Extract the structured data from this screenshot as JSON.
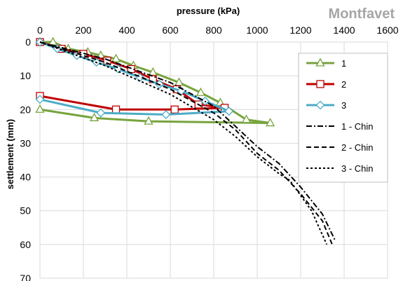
{
  "chart_data": {
    "type": "line",
    "title": "Montfavet",
    "xlabel": "pressure (kPa)",
    "ylabel": "settlement (mm)",
    "xlim": [
      0,
      1600
    ],
    "ylim": [
      0,
      70
    ],
    "y_reversed": true,
    "x_axis_position": "top",
    "x_ticks": [
      "0",
      "200",
      "400",
      "600",
      "800",
      "1000",
      "1200",
      "1400",
      "1600"
    ],
    "y_ticks": [
      "0",
      "10",
      "20",
      "30",
      "40",
      "50",
      "60",
      "70"
    ],
    "grid": true,
    "legend_position": "right",
    "series": [
      {
        "name": "1",
        "color": "#77a33d",
        "marker": "triangle",
        "dash": "solid",
        "points": [
          [
            0,
            0
          ],
          [
            60,
            0
          ],
          [
            130,
            2
          ],
          [
            220,
            3
          ],
          [
            280,
            4
          ],
          [
            350,
            5
          ],
          [
            430,
            7
          ],
          [
            520,
            9
          ],
          [
            640,
            12
          ],
          [
            740,
            15
          ],
          [
            830,
            18
          ],
          [
            950,
            23
          ],
          [
            1060,
            24
          ],
          [
            500,
            23.5
          ],
          [
            250,
            22.5
          ],
          [
            0,
            20
          ]
        ]
      },
      {
        "name": "2",
        "color": "#c00000",
        "marker": "square",
        "dash": "solid",
        "points": [
          [
            0,
            0
          ],
          [
            100,
            2
          ],
          [
            200,
            3.5
          ],
          [
            310,
            5.5
          ],
          [
            420,
            8
          ],
          [
            520,
            11
          ],
          [
            630,
            14
          ],
          [
            730,
            18.5
          ],
          [
            850,
            19.5
          ],
          [
            620,
            20
          ],
          [
            350,
            20
          ],
          [
            0,
            16
          ]
        ]
      },
      {
        "name": "3",
        "color": "#4bacc6",
        "marker": "diamond",
        "dash": "solid",
        "points": [
          [
            0,
            0
          ],
          [
            80,
            2
          ],
          [
            170,
            4
          ],
          [
            260,
            6
          ],
          [
            360,
            8
          ],
          [
            460,
            10.5
          ],
          [
            550,
            12.5
          ],
          [
            650,
            14.5
          ],
          [
            760,
            17.5
          ],
          [
            870,
            20.5
          ],
          [
            580,
            21.5
          ],
          [
            280,
            21
          ],
          [
            0,
            17
          ]
        ]
      },
      {
        "name": "1 - Chin",
        "color": "#000000",
        "marker": "none",
        "dash": "dashdot",
        "points": [
          [
            0,
            0
          ],
          [
            300,
            5
          ],
          [
            600,
            12
          ],
          [
            800,
            19
          ],
          [
            900,
            25
          ],
          [
            1000,
            31
          ],
          [
            1100,
            36
          ],
          [
            1200,
            43
          ],
          [
            1300,
            51
          ],
          [
            1360,
            59
          ]
        ]
      },
      {
        "name": "2 - Chin",
        "color": "#000000",
        "marker": "none",
        "dash": "dash",
        "points": [
          [
            0,
            0
          ],
          [
            300,
            6
          ],
          [
            600,
            14
          ],
          [
            800,
            21
          ],
          [
            900,
            26
          ],
          [
            1000,
            33
          ],
          [
            1100,
            38
          ],
          [
            1200,
            45
          ],
          [
            1300,
            53
          ],
          [
            1345,
            60
          ]
        ]
      },
      {
        "name": "3 - Chin",
        "color": "#000000",
        "marker": "none",
        "dash": "dot",
        "points": [
          [
            0,
            0
          ],
          [
            300,
            7
          ],
          [
            600,
            15.5
          ],
          [
            800,
            23
          ],
          [
            900,
            28
          ],
          [
            1000,
            34
          ],
          [
            1100,
            39
          ],
          [
            1150,
            41
          ],
          [
            1250,
            50
          ],
          [
            1320,
            60
          ]
        ]
      }
    ]
  }
}
